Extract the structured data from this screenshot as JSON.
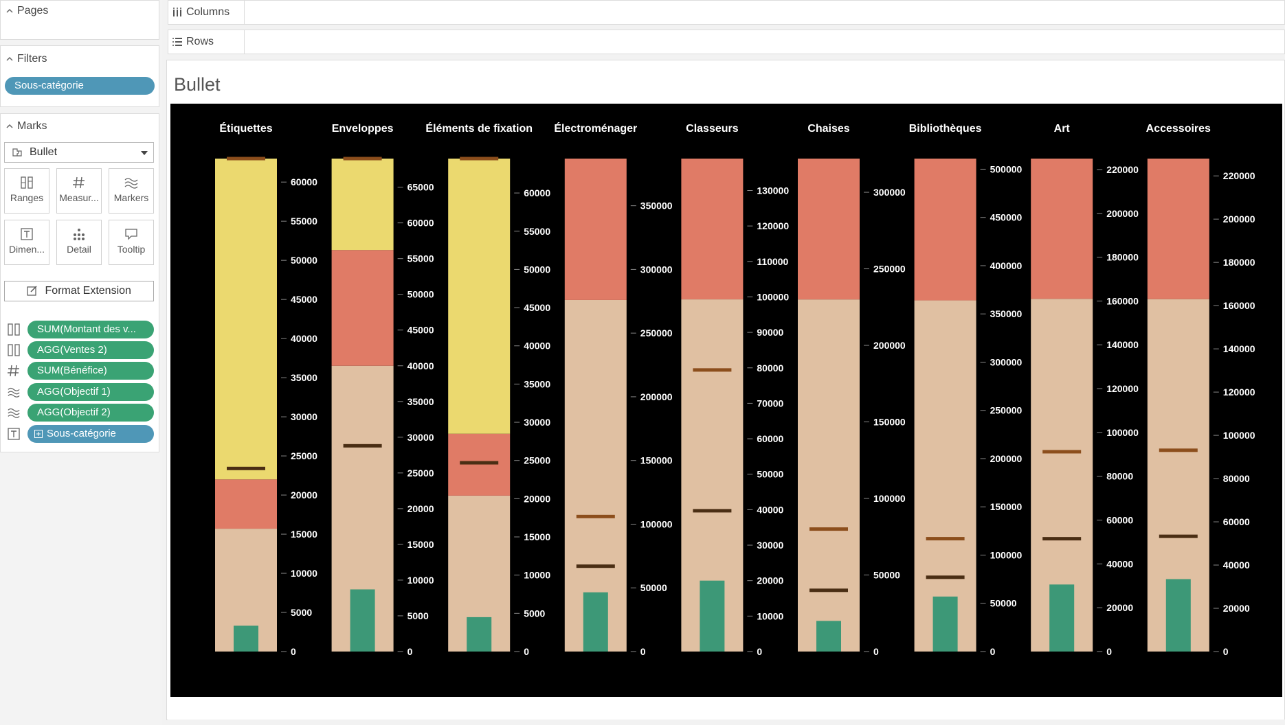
{
  "panels": {
    "pages_label": "Pages",
    "filters_label": "Filters",
    "filter_pill": "Sous-catégorie",
    "marks_label": "Marks",
    "mark_type": "Bullet",
    "buttons": {
      "ranges": "Ranges",
      "measures": "Measur...",
      "markers": "Markers",
      "dimensions": "Dimen...",
      "detail": "Detail",
      "tooltip": "Tooltip"
    },
    "format_extension": "Format Extension",
    "fields": [
      {
        "label": "SUM(Montant des v...",
        "icon": "ranges-icon"
      },
      {
        "label": "AGG(Ventes 2)",
        "icon": "ranges-icon"
      },
      {
        "label": "SUM(Bénéfice)",
        "icon": "measure-icon"
      },
      {
        "label": "AGG(Objectif 1)",
        "icon": "markers-icon"
      },
      {
        "label": "AGG(Objectif 2)",
        "icon": "markers-icon"
      },
      {
        "label": "Sous-catégorie",
        "icon": "text-icon"
      }
    ]
  },
  "shelves": {
    "columns_label": "Columns",
    "rows_label": "Rows"
  },
  "viz": {
    "title": "Bullet"
  },
  "colors": {
    "yellow_range": "#ebd96f",
    "red_range": "#e07b66",
    "tan_range": "#e0c0a2",
    "measure_bar": "#3d9877",
    "marker_dark": "#4a2e14",
    "marker_light": "#8c4e1c",
    "pill_blue": "#4f97b7",
    "pill_green": "#3aa374"
  },
  "chart_data": {
    "type": "bar",
    "subtype": "vertical bullet chart",
    "categories": [
      "Étiquettes",
      "Enveloppes",
      "Éléments de fixation",
      "Électroménager",
      "Classeurs",
      "Chaises",
      "Bibliothèques",
      "Art",
      "Accessoires"
    ],
    "panels": [
      {
        "category": "Étiquettes",
        "ymax": 63000,
        "ticks": [
          0,
          5000,
          10000,
          15000,
          20000,
          25000,
          30000,
          35000,
          40000,
          45000,
          50000,
          55000,
          60000
        ],
        "ranges": [
          {
            "from": 0,
            "to": 15700,
            "color": "tan"
          },
          {
            "from": 15700,
            "to": 22000,
            "color": "red"
          },
          {
            "from": 22000,
            "to": 63000,
            "color": "yellow"
          }
        ],
        "measure": 3300,
        "target_dark": 23400,
        "target_light": 63000
      },
      {
        "category": "Enveloppes",
        "ymax": 69000,
        "ticks": [
          0,
          5000,
          10000,
          15000,
          20000,
          25000,
          30000,
          35000,
          40000,
          45000,
          50000,
          55000,
          60000,
          65000
        ],
        "ranges": [
          {
            "from": 0,
            "to": 40000,
            "color": "tan"
          },
          {
            "from": 40000,
            "to": 56200,
            "color": "red"
          },
          {
            "from": 56200,
            "to": 69000,
            "color": "yellow"
          }
        ],
        "measure": 8700,
        "target_dark": 28800,
        "target_light": 69000
      },
      {
        "category": "Éléments de fixation",
        "ymax": 64500,
        "ticks": [
          0,
          5000,
          10000,
          15000,
          20000,
          25000,
          30000,
          35000,
          40000,
          45000,
          50000,
          55000,
          60000
        ],
        "ranges": [
          {
            "from": 0,
            "to": 20400,
            "color": "tan"
          },
          {
            "from": 20400,
            "to": 28500,
            "color": "red"
          },
          {
            "from": 28500,
            "to": 64500,
            "color": "yellow"
          }
        ],
        "measure": 4500,
        "target_dark": 24700,
        "target_light": 64500
      },
      {
        "category": "Électroménager",
        "ymax": 387000,
        "ticks": [
          0,
          50000,
          100000,
          150000,
          200000,
          250000,
          300000,
          350000
        ],
        "ranges": [
          {
            "from": 0,
            "to": 276000,
            "color": "tan"
          },
          {
            "from": 276000,
            "to": 387000,
            "color": "red"
          }
        ],
        "measure": 46500,
        "target_dark": 67000,
        "target_light": 106000
      },
      {
        "category": "Classeurs",
        "ymax": 139000,
        "ticks": [
          0,
          10000,
          20000,
          30000,
          40000,
          50000,
          60000,
          70000,
          80000,
          90000,
          100000,
          110000,
          120000,
          130000
        ],
        "ranges": [
          {
            "from": 0,
            "to": 99300,
            "color": "tan"
          },
          {
            "from": 99300,
            "to": 139000,
            "color": "red"
          }
        ],
        "measure": 20000,
        "target_dark": 39700,
        "target_light": 79400
      },
      {
        "category": "Chaises",
        "ymax": 322000,
        "ticks": [
          0,
          50000,
          100000,
          150000,
          200000,
          250000,
          300000
        ],
        "ranges": [
          {
            "from": 0,
            "to": 230000,
            "color": "tan"
          },
          {
            "from": 230000,
            "to": 322000,
            "color": "red"
          }
        ],
        "measure": 20000,
        "target_dark": 40000,
        "target_light": 80000
      },
      {
        "category": "Bibliothèques",
        "ymax": 511000,
        "ticks": [
          0,
          50000,
          100000,
          150000,
          200000,
          250000,
          300000,
          350000,
          400000,
          450000,
          500000
        ],
        "ranges": [
          {
            "from": 0,
            "to": 364000,
            "color": "tan"
          },
          {
            "from": 364000,
            "to": 511000,
            "color": "red"
          }
        ],
        "measure": 57000,
        "target_dark": 77000,
        "target_light": 117000
      },
      {
        "category": "Art",
        "ymax": 225000,
        "ticks": [
          0,
          20000,
          40000,
          60000,
          80000,
          100000,
          120000,
          140000,
          160000,
          180000,
          200000,
          220000
        ],
        "ranges": [
          {
            "from": 0,
            "to": 161000,
            "color": "tan"
          },
          {
            "from": 161000,
            "to": 225000,
            "color": "red"
          }
        ],
        "measure": 30600,
        "target_dark": 51500,
        "target_light": 91200
      },
      {
        "category": "Accessoires",
        "ymax": 228000,
        "ticks": [
          0,
          20000,
          40000,
          60000,
          80000,
          100000,
          120000,
          140000,
          160000,
          180000,
          200000,
          220000
        ],
        "ranges": [
          {
            "from": 0,
            "to": 163000,
            "color": "tan"
          },
          {
            "from": 163000,
            "to": 228000,
            "color": "red"
          }
        ],
        "measure": 33500,
        "target_dark": 53300,
        "target_light": 93100
      }
    ],
    "legend": "none",
    "grid": false
  }
}
